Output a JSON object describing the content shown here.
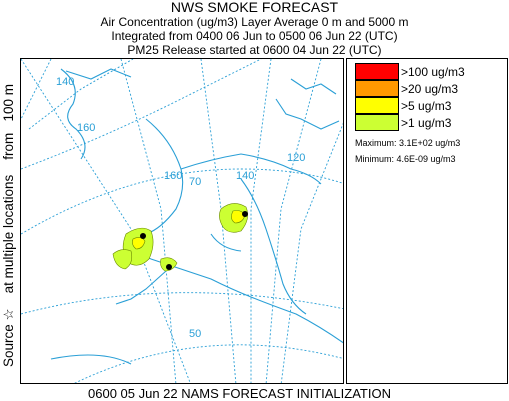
{
  "header": {
    "title": "NWS SMOKE FORECAST",
    "line2": "Air Concentration (ug/m3) Layer Average    0 m  and  5000 m",
    "line3": "Integrated from 0400 06 Jun to 0500 06 Jun 22 (UTC)",
    "line4": "PM25 Release started at 0600 04 Jun 22 (UTC)"
  },
  "side_label": {
    "source": "Source",
    "star": "☆",
    "locations": "at multiple locations",
    "from": "from",
    "height": "100 m"
  },
  "map": {
    "colors": {
      "coast": "#2a9fd6",
      "grid": "#2a9fd6",
      "marker": "#000000"
    },
    "grid_labels": [
      "140",
      "160",
      "140",
      "160",
      "70",
      "120",
      "50"
    ]
  },
  "legend": {
    "items": [
      {
        "label": ">100 ug/m3",
        "color": "#ff0000"
      },
      {
        "label": ">20 ug/m3",
        "color": "#ff9900"
      },
      {
        "label": ">5 ug/m3",
        "color": "#ffff00"
      },
      {
        "label": ">1 ug/m3",
        "color": "#ccff33"
      }
    ],
    "maximum": "Maximum: 3.1E+02 ug/m3",
    "minimum": "Minimum: 4.6E-09 ug/m3"
  },
  "footer": "0600 05 Jun 22 NAMS FORECAST INITIALIZATION"
}
